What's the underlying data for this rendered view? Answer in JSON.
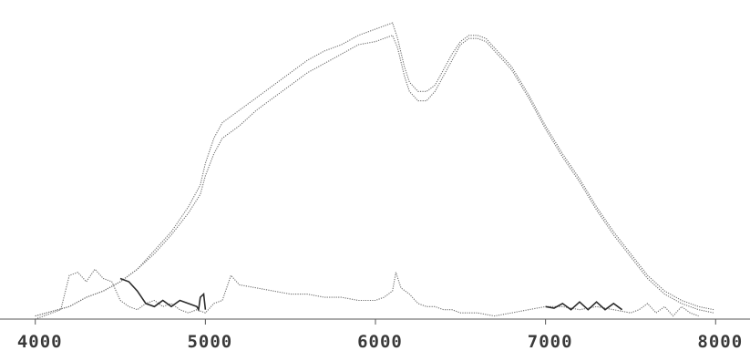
{
  "chart_data": {
    "type": "line",
    "title": "",
    "xlabel": "",
    "ylabel": "",
    "xlim": [
      3980,
      8020
    ],
    "ylim": [
      0,
      100
    ],
    "x_ticks": [
      4000,
      5000,
      6000,
      7000,
      8000
    ],
    "x_tick_labels": [
      "4000",
      "5000",
      "6000",
      "7000",
      "8000"
    ],
    "grid": false,
    "legend": "none",
    "colors": {
      "dotted": "#6e6e6e",
      "solid": "#2b2b2b",
      "axis": "#555555"
    },
    "series": [
      {
        "style": "dotted",
        "x": [
          4000,
          4100,
          4200,
          4300,
          4400,
          4500,
          4600,
          4700,
          4800,
          4900,
          4970,
          5000,
          5050,
          5100,
          5200,
          5300,
          5400,
          5500,
          5600,
          5700,
          5800,
          5900,
          6000,
          6050,
          6100,
          6130,
          6170,
          6200,
          6250,
          6300,
          6350,
          6400,
          6450,
          6500,
          6550,
          6600,
          6650,
          6700,
          6750,
          6800,
          6900,
          7000,
          7100,
          7200,
          7300,
          7400,
          7500,
          7600,
          7700,
          7800,
          7900,
          7990
        ],
        "y": [
          1,
          2.5,
          4,
          7,
          9,
          12,
          16,
          22,
          28,
          36,
          43,
          50,
          58,
          63,
          67,
          71,
          75,
          79,
          83,
          86,
          88,
          91,
          93,
          94,
          95,
          90,
          81,
          76,
          73,
          73,
          75,
          80,
          85,
          89,
          91,
          91,
          90,
          87,
          84,
          81,
          72,
          62,
          53,
          45,
          36,
          28,
          21,
          14,
          9,
          6,
          4,
          3
        ]
      },
      {
        "style": "dotted",
        "x": [
          4000,
          4100,
          4200,
          4300,
          4400,
          4500,
          4600,
          4700,
          4800,
          4900,
          4970,
          5000,
          5050,
          5100,
          5200,
          5300,
          5400,
          5500,
          5600,
          5700,
          5800,
          5900,
          6000,
          6050,
          6100,
          6130,
          6170,
          6200,
          6250,
          6300,
          6350,
          6400,
          6450,
          6500,
          6550,
          6600,
          6650,
          6700,
          6750,
          6800,
          6900,
          7000,
          7100,
          7200,
          7300,
          7400,
          7500,
          7600,
          7700,
          7800,
          7900,
          7990
        ],
        "y": [
          1,
          2.5,
          4,
          7,
          9,
          12,
          16,
          21,
          27,
          34,
          40,
          46,
          53,
          58,
          62,
          67,
          71,
          75,
          79,
          82,
          85,
          88,
          89,
          90,
          91,
          87,
          78,
          73,
          70,
          70,
          73,
          78,
          83,
          88,
          90,
          90,
          89,
          86,
          83,
          80,
          71,
          61,
          52,
          44,
          35,
          27,
          20,
          13,
          8,
          5,
          3,
          2
        ]
      },
      {
        "style": "dotted",
        "x": [
          4000,
          4100,
          4150,
          4200,
          4250,
          4300,
          4350,
          4400,
          4450,
          4500,
          4550,
          4600,
          4650,
          4700,
          4750,
          4800,
          4850,
          4900,
          4950,
          5000,
          5050,
          5100,
          5150,
          5200,
          5300,
          5400,
          5500,
          5600,
          5700,
          5800,
          5900,
          6000,
          6050,
          6100,
          6120,
          6150,
          6200,
          6250,
          6300,
          6350,
          6400,
          6450,
          6500,
          6600,
          6700,
          6800,
          6900,
          7000,
          7100,
          7200,
          7300,
          7400,
          7500,
          7550,
          7600,
          7650,
          7700,
          7750,
          7800,
          7850,
          7900
        ],
        "y": [
          0,
          2,
          3,
          14,
          15,
          12,
          16,
          13,
          12,
          6,
          4,
          3,
          5,
          6,
          4,
          5,
          3,
          2,
          3,
          2,
          5,
          6,
          14,
          11,
          10,
          9,
          8,
          8,
          7,
          7,
          6,
          6,
          7,
          9,
          15,
          10,
          8,
          5,
          4,
          4,
          3,
          3,
          2,
          2,
          1,
          2,
          3,
          4,
          4,
          3,
          4,
          3,
          2,
          3,
          5,
          2,
          4,
          1,
          4,
          2,
          1
        ]
      },
      {
        "style": "solid",
        "x": [
          4500,
          4550,
          4600,
          4650,
          4700,
          4750,
          4800,
          4850,
          4900,
          4950,
          4960,
          4970,
          4990,
          5000
        ],
        "y": [
          13,
          12,
          9,
          5,
          4,
          6,
          4,
          6,
          5,
          4,
          3,
          7,
          8,
          3
        ]
      },
      {
        "style": "solid",
        "x": [
          7000,
          7050,
          7100,
          7150,
          7200,
          7250,
          7300,
          7350,
          7400,
          7450
        ],
        "y": [
          4,
          3.5,
          5,
          3,
          5.5,
          3,
          5.5,
          3,
          5,
          3
        ]
      }
    ]
  }
}
